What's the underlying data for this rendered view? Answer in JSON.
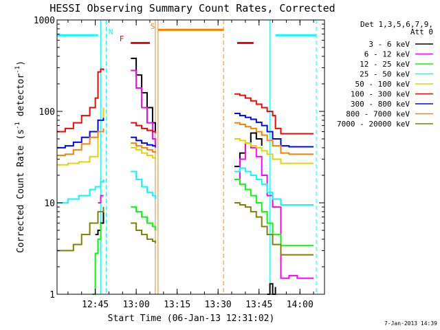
{
  "chart_data": {
    "type": "line",
    "title": "HESSI Observing Summary Count Rates, Corrected",
    "xlabel": "Start Time (06-Jan-13 12:31:02)",
    "ylabel": "Corrected Count Rate (s⁻¹ detector⁻¹)",
    "ylabel_main": "Corrected Count Rate (s",
    "ylabel_mid": " detector",
    "ylabel_end": ")",
    "ylabel_sup": "-1",
    "y_scale": "log",
    "ylim": [
      1,
      1000
    ],
    "xlim": [
      "12:31",
      "14:09"
    ],
    "x_ticks": [
      "12:45",
      "13:00",
      "13:15",
      "13:30",
      "13:45",
      "14:00"
    ],
    "y_ticks": [
      "1",
      "10",
      "100",
      "1000"
    ],
    "footer": "7-Jan-2013 14:39",
    "legend": {
      "header1": "Det 1,3,5,6,7,9,",
      "header2": "Att 0",
      "entries": [
        {
          "label": "3 - 6 keV",
          "color": "#000000"
        },
        {
          "label": "6 - 12 keV",
          "color": "#ff00ff"
        },
        {
          "label": "12 - 25 keV",
          "color": "#00ff00"
        },
        {
          "label": "25 - 50 keV",
          "color": "#00ffff"
        },
        {
          "label": "50 - 100 keV",
          "color": "#e6d200"
        },
        {
          "label": "100 - 300 keV",
          "color": "#ff0000"
        },
        {
          "label": "300 - 800 keV",
          "color": "#0000ff"
        },
        {
          "label": "800 - 7000 keV",
          "color": "#ff8000"
        },
        {
          "label": "7000 - 20000 keV",
          "color": "#808000"
        }
      ]
    },
    "flags": [
      {
        "label": "N",
        "color": "#00ffff"
      },
      {
        "label": "F",
        "color": "#ff0000"
      },
      {
        "label": "S",
        "color": "#ff8000"
      }
    ],
    "series": [
      {
        "name": "3 - 6 keV",
        "color": "#000000",
        "segments": [
          {
            "x": [
              "12:45",
              "12:46",
              "12:47",
              "12:48"
            ],
            "y": [
              4.5,
              5,
              6,
              9
            ]
          },
          {
            "x": [
              "12:58",
              "13:00",
              "13:02",
              "13:04",
              "13:06",
              "13:07"
            ],
            "y": [
              380,
              250,
              160,
              110,
              75,
              60
            ]
          },
          {
            "x": [
              "13:36",
              "13:38",
              "13:40",
              "13:42",
              "13:44",
              "13:46"
            ],
            "y": [
              25,
              35,
              45,
              58,
              50,
              42
            ]
          },
          {
            "x": [
              "13:48",
              "13:49",
              "13:50",
              "13:51"
            ],
            "y": [
              1,
              1.3,
              1,
              1.2
            ]
          }
        ]
      },
      {
        "name": "6 - 12 keV",
        "color": "#ff00ff",
        "segments": [
          {
            "x": [
              "12:46",
              "12:47",
              "12:48"
            ],
            "y": [
              10,
              12,
              12
            ]
          },
          {
            "x": [
              "12:58",
              "13:00",
              "13:02",
              "13:04",
              "13:06",
              "13:07"
            ],
            "y": [
              280,
              180,
              110,
              75,
              50,
              40
            ]
          },
          {
            "x": [
              "13:36",
              "13:38",
              "13:40",
              "13:42",
              "13:44",
              "13:46",
              "13:48",
              "13:50",
              "13:53",
              "13:56",
              "13:59",
              "14:02",
              "14:05"
            ],
            "y": [
              18,
              30,
              45,
              40,
              32,
              20,
              12,
              9,
              1.5,
              1.6,
              1.5,
              1.5,
              1.5
            ]
          }
        ]
      },
      {
        "name": "12 - 25 keV",
        "color": "#00ff00",
        "segments": [
          {
            "x": [
              "12:44",
              "12:45",
              "12:46",
              "12:47"
            ],
            "y": [
              1,
              2.8,
              4,
              6
            ]
          },
          {
            "x": [
              "12:58",
              "13:00",
              "13:02",
              "13:04",
              "13:06",
              "13:07"
            ],
            "y": [
              9,
              8,
              7,
              6,
              5.5,
              5
            ]
          },
          {
            "x": [
              "13:36",
              "13:38",
              "13:40",
              "13:42",
              "13:44",
              "13:46",
              "13:48",
              "13:50",
              "13:53",
              "13:56",
              "13:59",
              "14:02",
              "14:05"
            ],
            "y": [
              18,
              16,
              14,
              12,
              10,
              8,
              6,
              4.5,
              3.4,
              3.4,
              3.4,
              3.4,
              3.4
            ]
          }
        ]
      },
      {
        "name": "25 - 50 keV",
        "color": "#00ffff",
        "segments": [
          {
            "x": [
              "12:31",
              "12:35",
              "12:39",
              "12:43",
              "12:45",
              "12:47",
              "12:48"
            ],
            "y": [
              10,
              11,
              12,
              14,
              15,
              17,
              18
            ]
          },
          {
            "x": [
              "12:58",
              "13:00",
              "13:02",
              "13:04",
              "13:06",
              "13:07"
            ],
            "y": [
              22,
              18,
              15,
              13,
              12,
              11
            ]
          },
          {
            "x": [
              "13:36",
              "13:38",
              "13:40",
              "13:42",
              "13:44",
              "13:46",
              "13:48",
              "13:50",
              "13:53",
              "13:56",
              "13:59",
              "14:02",
              "14:05"
            ],
            "y": [
              22,
              24,
              22,
              20,
              18,
              16,
              13,
              11,
              9.5,
              9.5,
              9.5,
              9.5,
              9.5
            ]
          }
        ]
      },
      {
        "name": "50 - 100 keV",
        "color": "#e6d200",
        "segments": [
          {
            "x": [
              "12:31",
              "12:35",
              "12:39",
              "12:43",
              "12:46",
              "12:48"
            ],
            "y": [
              26,
              27,
              28,
              32,
              80,
              110
            ]
          },
          {
            "x": [
              "12:58",
              "13:00",
              "13:02",
              "13:04",
              "13:06",
              "13:07"
            ],
            "y": [
              40,
              38,
              35,
              33,
              31,
              30
            ]
          },
          {
            "x": [
              "13:36",
              "13:38",
              "13:40",
              "13:42",
              "13:44",
              "13:46",
              "13:48",
              "13:50",
              "13:53",
              "13:56",
              "13:59",
              "14:02",
              "14:05"
            ],
            "y": [
              50,
              48,
              45,
              42,
              40,
              37,
              34,
              30,
              27,
              27,
              27,
              27,
              27
            ]
          }
        ]
      },
      {
        "name": "100 - 300 keV",
        "color": "#ff0000",
        "segments": [
          {
            "x": [
              "12:31",
              "12:34",
              "12:37",
              "12:40",
              "12:43",
              "12:45",
              "12:46",
              "12:47",
              "12:48"
            ],
            "y": [
              60,
              65,
              75,
              90,
              110,
              140,
              270,
              290,
              280
            ]
          },
          {
            "x": [
              "12:58",
              "13:00",
              "13:02",
              "13:04",
              "13:06",
              "13:07"
            ],
            "y": [
              75,
              70,
              65,
              62,
              60,
              58
            ]
          },
          {
            "x": [
              "13:36",
              "13:38",
              "13:40",
              "13:42",
              "13:44",
              "13:46",
              "13:48",
              "13:50",
              "13:51",
              "13:53",
              "13:56",
              "13:59",
              "14:02",
              "14:05"
            ],
            "y": [
              155,
              150,
              140,
              130,
              120,
              110,
              100,
              90,
              65,
              57,
              57,
              57,
              57,
              57
            ]
          }
        ]
      },
      {
        "name": "300 - 800 keV",
        "color": "#0000ff",
        "segments": [
          {
            "x": [
              "12:31",
              "12:34",
              "12:37",
              "12:40",
              "12:43",
              "12:46",
              "12:48"
            ],
            "y": [
              40,
              42,
              46,
              52,
              60,
              80,
              85
            ]
          },
          {
            "x": [
              "12:58",
              "13:00",
              "13:02",
              "13:04",
              "13:06",
              "13:07"
            ],
            "y": [
              52,
              48,
              45,
              43,
              42,
              41
            ]
          },
          {
            "x": [
              "13:36",
              "13:38",
              "13:40",
              "13:42",
              "13:44",
              "13:46",
              "13:48",
              "13:50",
              "13:53",
              "13:56",
              "13:59",
              "14:02",
              "14:05"
            ],
            "y": [
              95,
              90,
              86,
              82,
              76,
              70,
              60,
              50,
              42,
              41,
              41,
              41,
              41
            ]
          }
        ]
      },
      {
        "name": "800 - 7000 keV",
        "color": "#ff8000",
        "segments": [
          {
            "x": [
              "12:31",
              "12:34",
              "12:37",
              "12:40",
              "12:43",
              "12:46",
              "12:48"
            ],
            "y": [
              33,
              34,
              38,
              44,
              52,
              60,
              65
            ]
          },
          {
            "x": [
              "12:58",
              "13:00",
              "13:02",
              "13:04",
              "13:06",
              "13:07"
            ],
            "y": [
              45,
              42,
              40,
              38,
              36,
              35
            ]
          },
          {
            "x": [
              "13:36",
              "13:38",
              "13:40",
              "13:42",
              "13:44",
              "13:46",
              "13:48",
              "13:50",
              "13:53",
              "13:56",
              "13:59",
              "14:02",
              "14:05"
            ],
            "y": [
              75,
              72,
              68,
              65,
              60,
              55,
              48,
              42,
              35,
              34,
              34,
              34,
              34
            ]
          }
        ]
      },
      {
        "name": "7000 - 20000 keV",
        "color": "#808000",
        "segments": [
          {
            "x": [
              "12:31",
              "12:34",
              "12:37",
              "12:40",
              "12:43",
              "12:46",
              "12:48"
            ],
            "y": [
              3,
              3,
              3.5,
              4.5,
              6,
              8,
              9
            ]
          },
          {
            "x": [
              "12:58",
              "13:00",
              "13:02",
              "13:04",
              "13:06",
              "13:07"
            ],
            "y": [
              6,
              5,
              4.5,
              4,
              3.8,
              3.6
            ]
          },
          {
            "x": [
              "13:36",
              "13:38",
              "13:40",
              "13:42",
              "13:44",
              "13:46",
              "13:48",
              "13:50",
              "13:53",
              "13:56",
              "13:59",
              "14:02",
              "14:05"
            ],
            "y": [
              10,
              9.5,
              9,
              8,
              7,
              5.5,
              4.5,
              3.5,
              2.7,
              2.7,
              2.7,
              2.7,
              2.7
            ]
          }
        ]
      }
    ],
    "flag_bars": [
      {
        "name": "N",
        "color": "#00ffff",
        "dashed": false,
        "y": 680,
        "ranges": [
          [
            "12:31",
            "12:46"
          ],
          [
            "13:51",
            "14:06"
          ]
        ]
      },
      {
        "name": "F",
        "color": "#ff0000",
        "dashed": false,
        "y": 560,
        "ranges": [
          [
            "12:58",
            "13:05"
          ],
          [
            "13:37",
            "13:43"
          ]
        ]
      },
      {
        "name": "S",
        "color": "#ff8000",
        "dashed": false,
        "y": 780,
        "ranges": [
          [
            "13:08",
            "13:32"
          ]
        ]
      }
    ],
    "markers": [
      {
        "at": "12:47",
        "color": "#00ffff",
        "dashed": false
      },
      {
        "at": "12:49",
        "color": "#00ffff",
        "dashed": true
      },
      {
        "at": "13:07",
        "color": "#ff8000",
        "dashed": false
      },
      {
        "at": "13:08",
        "color": "#ff8000",
        "dashed": false
      },
      {
        "at": "13:32",
        "color": "#ff8000",
        "dashed": true
      },
      {
        "at": "13:49",
        "color": "#00ffff",
        "dashed": false
      },
      {
        "at": "14:06",
        "color": "#00ffff",
        "dashed": true
      }
    ]
  }
}
